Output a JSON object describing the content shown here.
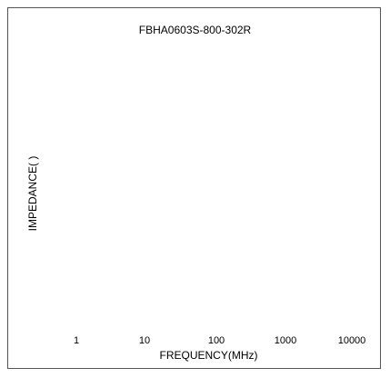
{
  "chart_data": {
    "type": "line",
    "title": "FBHA0603S-800-302R",
    "xlabel": "FREQUENCY(MHz)",
    "ylabel": "IMPEDANCE(  )",
    "x_scale": "log",
    "x_ticks": [
      "1",
      "10",
      "100",
      "1000",
      "10000"
    ],
    "grid": false,
    "series": []
  }
}
